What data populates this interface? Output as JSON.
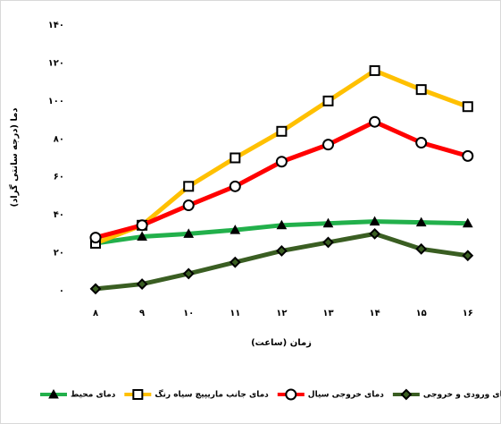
{
  "chart_data": {
    "type": "line",
    "x_label": "زمان (ساعت)",
    "y_label": "دما (درجه سانتی گراد)",
    "categories": [
      "۸",
      "۹",
      "۱۰",
      "۱۱",
      "۱۲",
      "۱۳",
      "۱۴",
      "۱۵",
      "۱۶"
    ],
    "ylim": [
      0,
      140
    ],
    "yticks": [
      {
        "value": 0,
        "label": "۰"
      },
      {
        "value": 20,
        "label": "۲۰"
      },
      {
        "value": 40,
        "label": "۴۰"
      },
      {
        "value": 60,
        "label": "۶۰"
      },
      {
        "value": 80,
        "label": "۸۰"
      },
      {
        "value": 100,
        "label": "۱۰۰"
      },
      {
        "value": 120,
        "label": "۱۲۰"
      },
      {
        "value": 140,
        "label": "۱۴۰"
      }
    ],
    "grid": false,
    "legend": "bottom",
    "series": [
      {
        "name": "دمای محیط",
        "color": "#22b04b",
        "marker": "triangle",
        "values": [
          25,
          28.5,
          30,
          32,
          34.5,
          35.5,
          36.5,
          36,
          35.5
        ]
      },
      {
        "name": "دمای جانب ماریپیچ سیاه رنگ",
        "color": "#ffc000",
        "marker": "square",
        "values": [
          25,
          34.5,
          55,
          70,
          84,
          100,
          116,
          106,
          97
        ]
      },
      {
        "name": "دمای خروجی سیال",
        "color": "#ff0000",
        "marker": "circle",
        "values": [
          28,
          34.5,
          45,
          55,
          68,
          77,
          89,
          78,
          71
        ]
      },
      {
        "name": "اختلاف دمای ورودی و خروجی",
        "color": "#3a5e22",
        "marker": "diamond",
        "values": [
          1,
          3.5,
          9,
          15,
          21,
          25.5,
          30,
          22,
          18.5
        ]
      }
    ]
  }
}
